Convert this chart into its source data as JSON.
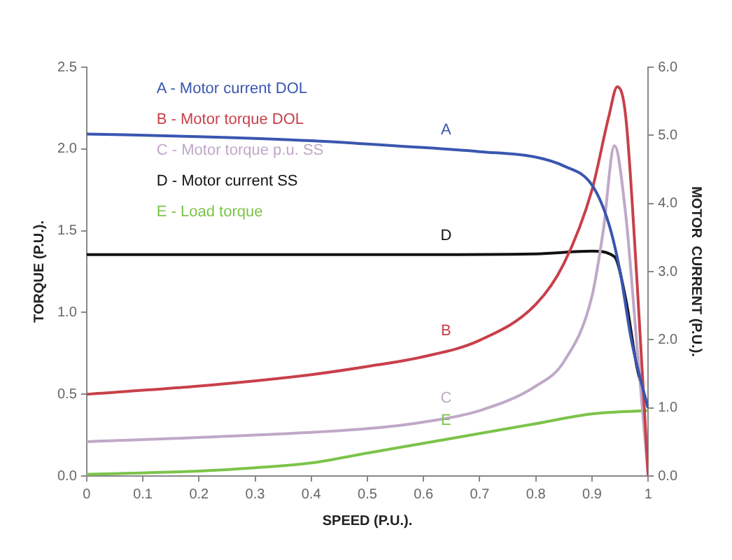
{
  "chart_data": {
    "type": "line",
    "xlabel": "SPEED (P.U.).",
    "ylabel": "TORQUE (P.U.).",
    "y2label": "MOTOR  CURRENT (P.U.).",
    "xlim": [
      0,
      1
    ],
    "xticks": [
      0,
      0.1,
      0.2,
      0.3,
      0.4,
      0.5,
      0.6,
      0.7,
      0.8,
      0.9,
      1
    ],
    "ylim": [
      0,
      2.5
    ],
    "yticks": [
      {
        "value": 0,
        "label": "0.0"
      },
      {
        "value": 0.5,
        "label": "0.5"
      },
      {
        "value": 1,
        "label": "1.0"
      },
      {
        "value": 1.5,
        "label": "1.5"
      },
      {
        "value": 2,
        "label": "2.0"
      },
      {
        "value": 2.5,
        "label": "2.5"
      }
    ],
    "y2lim": [
      0,
      6
    ],
    "y2ticks": [
      {
        "value": 0,
        "label": "0.0"
      },
      {
        "value": 1,
        "label": "1.0"
      },
      {
        "value": 2,
        "label": "2.0"
      },
      {
        "value": 3,
        "label": "3.0"
      },
      {
        "value": 4,
        "label": "4.0"
      },
      {
        "value": 5,
        "label": "5.0"
      },
      {
        "value": 6,
        "label": "6.0"
      }
    ],
    "grid": false,
    "legend": "top left",
    "marker": "none",
    "line_style": "solid",
    "series": [
      {
        "name": "A - Motor current DOL",
        "color": "#3a56b0",
        "axis": "y2",
        "x": [
          0,
          0.2,
          0.4,
          0.6,
          0.7,
          0.8,
          0.85,
          0.9,
          0.93,
          0.95,
          0.97,
          0.99,
          1
        ],
        "values": [
          5.02,
          4.98,
          4.92,
          4.82,
          4.76,
          4.68,
          4.55,
          4.27,
          3.7,
          3.0,
          2.0,
          1.3,
          1.0
        ]
      },
      {
        "name": "B - Motor torque DOL",
        "color": "#c8404a",
        "x": [
          0,
          0.2,
          0.4,
          0.5,
          0.6,
          0.7,
          0.8,
          0.85,
          0.9,
          0.93,
          0.945,
          0.96,
          0.98,
          1
        ],
        "values": [
          0.5,
          0.55,
          0.62,
          0.67,
          0.73,
          0.83,
          1.05,
          1.3,
          1.75,
          2.2,
          2.38,
          2.2,
          1.2,
          0
        ]
      },
      {
        "name": "C - Motor torque p.u. SS",
        "color": "#c0a8c8",
        "x": [
          0,
          0.3,
          0.5,
          0.6,
          0.7,
          0.8,
          0.85,
          0.9,
          0.92,
          0.94,
          0.96,
          0.98,
          1
        ],
        "values": [
          0.21,
          0.25,
          0.29,
          0.33,
          0.4,
          0.55,
          0.7,
          1.1,
          1.5,
          2.02,
          1.6,
          0.8,
          0
        ]
      },
      {
        "name": "D - Motor current SS",
        "color": "#111111",
        "axis": "y2",
        "x": [
          0,
          0.3,
          0.6,
          0.8,
          0.9,
          0.94,
          0.96,
          0.98,
          1
        ],
        "values": [
          3.25,
          3.25,
          3.25,
          3.26,
          3.3,
          3.22,
          2.6,
          1.6,
          1.0
        ]
      },
      {
        "name": "E - Load torque",
        "color": "#7cc34a",
        "x": [
          0,
          0.2,
          0.3,
          0.4,
          0.5,
          0.6,
          0.7,
          0.8,
          0.9,
          1
        ],
        "values": [
          0.01,
          0.03,
          0.05,
          0.08,
          0.14,
          0.2,
          0.26,
          0.32,
          0.38,
          0.4
        ]
      }
    ],
    "annotations": [
      "A",
      "B",
      "C",
      "D",
      "E"
    ]
  }
}
